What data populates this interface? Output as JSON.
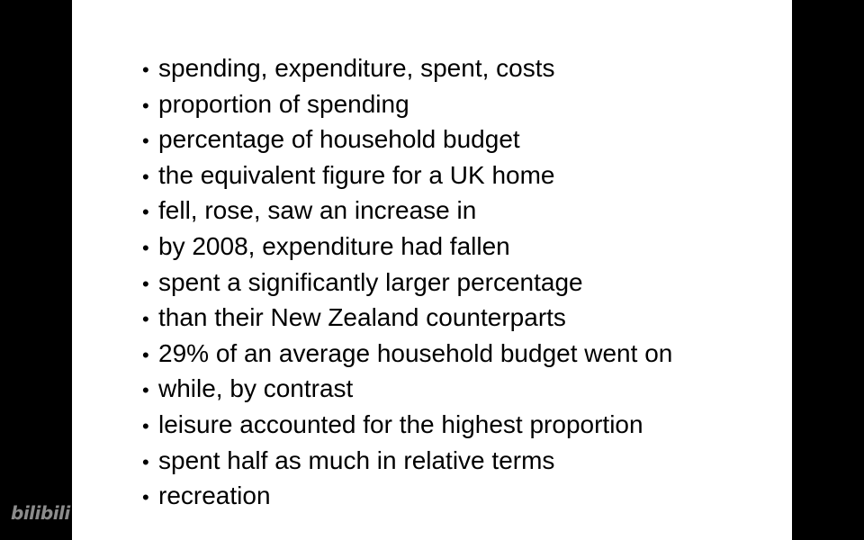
{
  "slide": {
    "items": [
      "spending, expenditure, spent, costs",
      "proportion of spending",
      "percentage of household budget",
      "the equivalent figure for a UK home",
      "fell, rose, saw an increase in",
      "by 2008, expenditure had fallen",
      "spent a significantly larger percentage",
      "than their New Zealand counterparts",
      "29% of an average household budget went on",
      "while, by contrast",
      "leisure accounted for the highest proportion",
      "spent half as much in relative terms",
      "recreation"
    ]
  },
  "watermark": {
    "text": "bilibili"
  },
  "colors": {
    "background": "#000000",
    "slide": "#ffffff",
    "text": "#000000"
  }
}
